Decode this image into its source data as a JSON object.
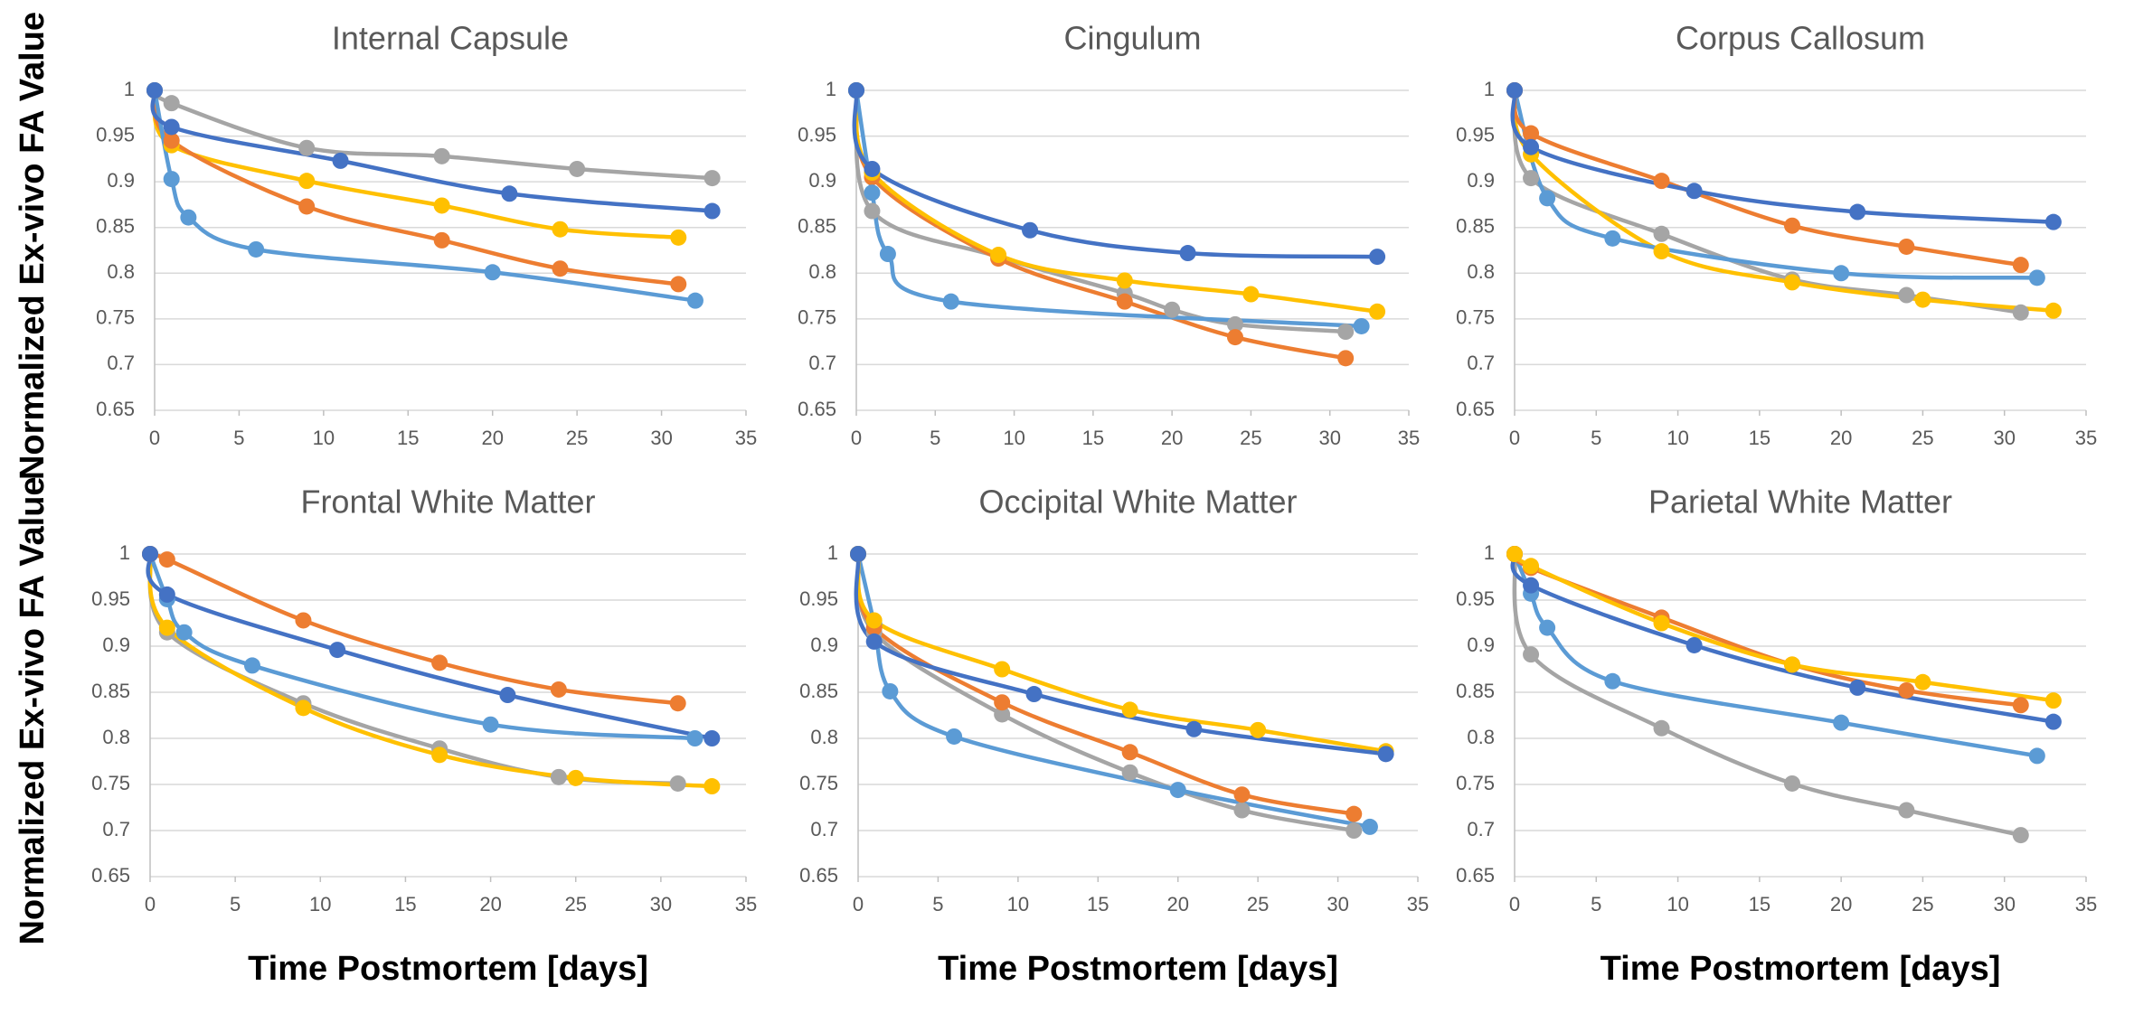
{
  "chart_data": [
    {
      "type": "line",
      "title": "Internal Capsule",
      "ylabel": "Normalized Ex-vivo FA Value",
      "xlim": [
        0,
        35
      ],
      "ylim": [
        0.65,
        1
      ],
      "xticks": [
        0,
        5,
        10,
        15,
        20,
        25,
        30,
        35
      ],
      "yticks": [
        0.65,
        0.7,
        0.75,
        0.8,
        0.85,
        0.9,
        0.95,
        1
      ],
      "grid": true,
      "series": [
        {
          "color": "#a5a5a5",
          "x": [
            0,
            1,
            9,
            17,
            25,
            33
          ],
          "values": [
            1,
            0.986,
            0.937,
            0.928,
            0.914,
            0.904
          ]
        },
        {
          "color": "#ffc000",
          "x": [
            0,
            1,
            9,
            17,
            24,
            31
          ],
          "values": [
            1,
            0.94,
            0.901,
            0.874,
            0.848,
            0.839
          ]
        },
        {
          "color": "#ed7d31",
          "x": [
            0,
            1,
            9,
            17,
            24,
            31
          ],
          "values": [
            1,
            0.945,
            0.873,
            0.836,
            0.805,
            0.788
          ]
        },
        {
          "color": "#5b9bd5",
          "x": [
            0,
            1,
            2,
            6,
            20,
            32
          ],
          "values": [
            1,
            0.903,
            0.861,
            0.826,
            0.801,
            0.77
          ]
        },
        {
          "color": "#4472c4",
          "x": [
            0,
            1,
            11,
            21,
            33
          ],
          "values": [
            1,
            0.96,
            0.923,
            0.887,
            0.868
          ]
        }
      ]
    },
    {
      "type": "line",
      "title": "Cingulum",
      "xlim": [
        0,
        35
      ],
      "ylim": [
        0.65,
        1
      ],
      "xticks": [
        0,
        5,
        10,
        15,
        20,
        25,
        30,
        35
      ],
      "yticks": [
        0.65,
        0.7,
        0.75,
        0.8,
        0.85,
        0.9,
        0.95,
        1
      ],
      "grid": true,
      "series": [
        {
          "color": "#a5a5a5",
          "x": [
            0,
            1,
            9,
            17,
            20,
            24,
            31
          ],
          "values": [
            1,
            0.868,
            0.818,
            0.778,
            0.76,
            0.744,
            0.736
          ]
        },
        {
          "color": "#ed7d31",
          "x": [
            0,
            1,
            9,
            17,
            24,
            31
          ],
          "values": [
            1,
            0.905,
            0.816,
            0.769,
            0.73,
            0.707
          ]
        },
        {
          "color": "#ffc000",
          "x": [
            0,
            1,
            9,
            17,
            25,
            33
          ],
          "values": [
            1,
            0.91,
            0.82,
            0.792,
            0.777,
            0.758
          ]
        },
        {
          "color": "#5b9bd5",
          "x": [
            0,
            1,
            2,
            6,
            32
          ],
          "values": [
            1,
            0.888,
            0.821,
            0.769,
            0.742
          ]
        },
        {
          "color": "#4472c4",
          "x": [
            0,
            1,
            11,
            21,
            33
          ],
          "values": [
            1,
            0.914,
            0.847,
            0.822,
            0.818
          ]
        }
      ]
    },
    {
      "type": "line",
      "title": "Corpus Callosum",
      "xlim": [
        0,
        35
      ],
      "ylim": [
        0.65,
        1
      ],
      "xticks": [
        0,
        5,
        10,
        15,
        20,
        25,
        30,
        35
      ],
      "yticks": [
        0.65,
        0.7,
        0.75,
        0.8,
        0.85,
        0.9,
        0.95,
        1
      ],
      "grid": true,
      "series": [
        {
          "color": "#a5a5a5",
          "x": [
            0,
            1,
            9,
            17,
            24,
            31
          ],
          "values": [
            1,
            0.904,
            0.843,
            0.793,
            0.776,
            0.757
          ]
        },
        {
          "color": "#ffc000",
          "x": [
            0,
            1,
            9,
            17,
            25,
            33
          ],
          "values": [
            1,
            0.93,
            0.824,
            0.79,
            0.771,
            0.759
          ]
        },
        {
          "color": "#5b9bd5",
          "x": [
            0,
            2,
            6,
            20,
            32
          ],
          "values": [
            1,
            0.882,
            0.838,
            0.8,
            0.795
          ]
        },
        {
          "color": "#ed7d31",
          "x": [
            0,
            1,
            9,
            17,
            24,
            31
          ],
          "values": [
            1,
            0.953,
            0.901,
            0.852,
            0.829,
            0.809
          ]
        },
        {
          "color": "#4472c4",
          "x": [
            0,
            1,
            11,
            21,
            33
          ],
          "values": [
            1,
            0.938,
            0.89,
            0.867,
            0.856
          ]
        }
      ]
    },
    {
      "type": "line",
      "title": "Frontal White Matter",
      "ylabel": "Normalized Ex-vivo FA Value",
      "xlabel": "Time Postmortem [days]",
      "xlim": [
        0,
        35
      ],
      "ylim": [
        0.65,
        1
      ],
      "xticks": [
        0,
        5,
        10,
        15,
        20,
        25,
        30,
        35
      ],
      "yticks": [
        0.65,
        0.7,
        0.75,
        0.8,
        0.85,
        0.9,
        0.95,
        1
      ],
      "grid": true,
      "series": [
        {
          "color": "#a5a5a5",
          "x": [
            0,
            1,
            9,
            17,
            24,
            31
          ],
          "values": [
            1,
            0.915,
            0.838,
            0.789,
            0.758,
            0.751
          ]
        },
        {
          "color": "#ffc000",
          "x": [
            0,
            1,
            9,
            17,
            25,
            33
          ],
          "values": [
            1,
            0.92,
            0.833,
            0.782,
            0.757,
            0.748
          ]
        },
        {
          "color": "#5b9bd5",
          "x": [
            0,
            1,
            2,
            6,
            20,
            32
          ],
          "values": [
            1,
            0.951,
            0.915,
            0.879,
            0.815,
            0.8
          ]
        },
        {
          "color": "#ed7d31",
          "x": [
            0,
            1,
            9,
            17,
            24,
            31
          ],
          "values": [
            1,
            0.994,
            0.928,
            0.882,
            0.853,
            0.838
          ]
        },
        {
          "color": "#4472c4",
          "x": [
            0,
            1,
            11,
            21,
            33
          ],
          "values": [
            1,
            0.956,
            0.896,
            0.847,
            0.8
          ]
        }
      ]
    },
    {
      "type": "line",
      "title": "Occipital White Matter",
      "xlabel": "Time Postmortem [days]",
      "xlim": [
        0,
        35
      ],
      "ylim": [
        0.65,
        1
      ],
      "xticks": [
        0,
        5,
        10,
        15,
        20,
        25,
        30,
        35
      ],
      "yticks": [
        0.65,
        0.7,
        0.75,
        0.8,
        0.85,
        0.9,
        0.95,
        1
      ],
      "grid": true,
      "series": [
        {
          "color": "#a5a5a5",
          "x": [
            0,
            1,
            9,
            17,
            24,
            31
          ],
          "values": [
            1,
            0.915,
            0.826,
            0.763,
            0.722,
            0.7
          ]
        },
        {
          "color": "#5b9bd5",
          "x": [
            0,
            1,
            2,
            6,
            20,
            32
          ],
          "values": [
            1,
            0.925,
            0.851,
            0.802,
            0.744,
            0.704
          ]
        },
        {
          "color": "#ed7d31",
          "x": [
            0,
            1,
            9,
            17,
            24,
            31
          ],
          "values": [
            1,
            0.92,
            0.839,
            0.785,
            0.739,
            0.718
          ]
        },
        {
          "color": "#ffc000",
          "x": [
            0,
            1,
            9,
            17,
            25,
            33
          ],
          "values": [
            1,
            0.928,
            0.875,
            0.831,
            0.809,
            0.786
          ]
        },
        {
          "color": "#4472c4",
          "x": [
            0,
            1,
            11,
            21,
            33
          ],
          "values": [
            1,
            0.905,
            0.848,
            0.81,
            0.783
          ]
        }
      ]
    },
    {
      "type": "line",
      "title": "Parietal White Matter",
      "xlabel": "Time Postmortem [days]",
      "xlim": [
        0,
        35
      ],
      "ylim": [
        0.65,
        1
      ],
      "xticks": [
        0,
        5,
        10,
        15,
        20,
        25,
        30,
        35
      ],
      "yticks": [
        0.65,
        0.7,
        0.75,
        0.8,
        0.85,
        0.9,
        0.95,
        1
      ],
      "grid": true,
      "series": [
        {
          "color": "#a5a5a5",
          "x": [
            0,
            1,
            9,
            17,
            24,
            31
          ],
          "values": [
            1,
            0.891,
            0.811,
            0.751,
            0.722,
            0.695
          ]
        },
        {
          "color": "#5b9bd5",
          "x": [
            0,
            1,
            2,
            6,
            20,
            32
          ],
          "values": [
            1,
            0.957,
            0.92,
            0.862,
            0.817,
            0.781
          ]
        },
        {
          "color": "#4472c4",
          "x": [
            0,
            1,
            11,
            21,
            33
          ],
          "values": [
            1,
            0.966,
            0.901,
            0.855,
            0.818
          ]
        },
        {
          "color": "#ed7d31",
          "x": [
            0,
            1,
            9,
            17,
            24,
            31
          ],
          "values": [
            1,
            0.985,
            0.931,
            0.88,
            0.852,
            0.836
          ]
        },
        {
          "color": "#ffc000",
          "x": [
            0,
            1,
            9,
            17,
            25,
            33
          ],
          "values": [
            1,
            0.987,
            0.925,
            0.88,
            0.861,
            0.841
          ]
        }
      ]
    }
  ]
}
